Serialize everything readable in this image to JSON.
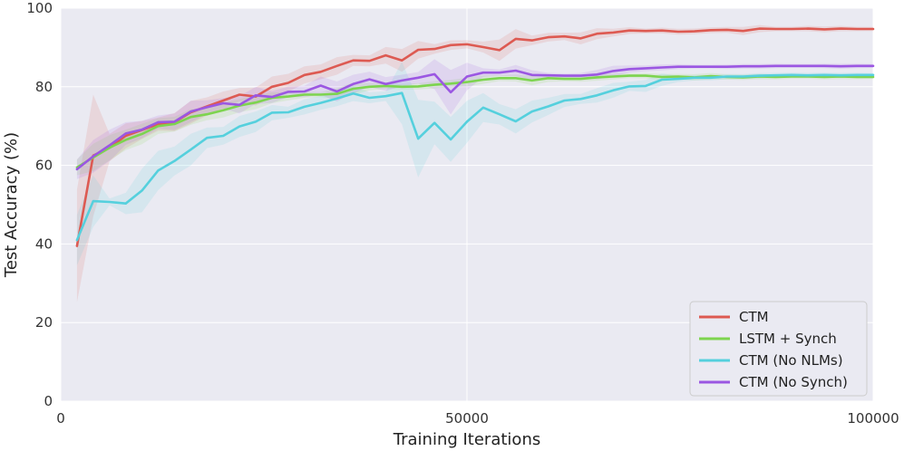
{
  "chart_data": {
    "type": "line",
    "title": "",
    "xlabel": "Training Iterations",
    "ylabel": "Test Accuracy (%)",
    "xlim": [
      0,
      100000
    ],
    "ylim": [
      0,
      100
    ],
    "x_ticks": [
      0,
      50000,
      100000
    ],
    "y_ticks": [
      0,
      20,
      40,
      60,
      80,
      100
    ],
    "x_tick_labels": [
      "0",
      "50000",
      "100000"
    ],
    "y_tick_labels": [
      "0",
      "20",
      "40",
      "60",
      "80",
      "100"
    ],
    "grid": true,
    "background": "#eaeaf2",
    "legend_position": "bottom-right",
    "series": [
      {
        "name": "CTM",
        "color": "#dd5a52",
        "x": [
          2000,
          4000,
          6000,
          8000,
          10000,
          12000,
          14000,
          16000,
          18000,
          20000,
          22000,
          24000,
          26000,
          28000,
          30000,
          32000,
          34000,
          36000,
          38000,
          40000,
          42000,
          44000,
          46000,
          48000,
          50000,
          52000,
          54000,
          56000,
          58000,
          60000,
          62000,
          64000,
          66000,
          68000,
          70000,
          72000,
          74000,
          76000,
          78000,
          80000,
          82000,
          84000,
          86000,
          88000,
          90000,
          92000,
          94000,
          96000,
          98000,
          100000
        ],
        "y": [
          39.5,
          62.5,
          64.5,
          67.5,
          69,
          70.5,
          71,
          73.5,
          75,
          76.5,
          78,
          77.5,
          80,
          81,
          83,
          83.8,
          85.3,
          86.7,
          86.6,
          88,
          86.7,
          89.4,
          89.6,
          90.6,
          90.8,
          90.1,
          89.3,
          92.2,
          91.8,
          92.6,
          92.8,
          92.3,
          93.5,
          93.8,
          94.3,
          94.2,
          94.3,
          94,
          94.1,
          94.4,
          94.5,
          94.2,
          94.8,
          94.7,
          94.7,
          94.8,
          94.6,
          94.8,
          94.7,
          94.7
        ]
      },
      {
        "name": "LSTM + Synch",
        "color": "#7dd44f",
        "x": [
          2000,
          4000,
          6000,
          8000,
          10000,
          12000,
          14000,
          16000,
          18000,
          20000,
          22000,
          24000,
          26000,
          28000,
          30000,
          32000,
          34000,
          36000,
          38000,
          40000,
          42000,
          44000,
          46000,
          48000,
          50000,
          52000,
          54000,
          56000,
          58000,
          60000,
          62000,
          64000,
          66000,
          68000,
          70000,
          72000,
          74000,
          76000,
          78000,
          80000,
          82000,
          84000,
          86000,
          88000,
          90000,
          92000,
          94000,
          96000,
          98000,
          100000
        ],
        "y": [
          59.5,
          62,
          64.5,
          66.5,
          68,
          70,
          70.5,
          72.3,
          73,
          74,
          75.2,
          76,
          77.2,
          77.5,
          78,
          78,
          78.2,
          79.5,
          80,
          80.2,
          80,
          80.1,
          80.5,
          80.8,
          81.2,
          81.8,
          82.2,
          82.2,
          81.6,
          82.2,
          82,
          82,
          82.4,
          82.6,
          82.8,
          82.8,
          82.5,
          82.6,
          82.4,
          82.7,
          82.5,
          82.4,
          82.6,
          82.5,
          82.6,
          82.6,
          82.5,
          82.6,
          82.5,
          82.5
        ]
      },
      {
        "name": "CTM (No NLMs)",
        "color": "#55d0dd",
        "x": [
          2000,
          4000,
          6000,
          8000,
          10000,
          12000,
          14000,
          16000,
          18000,
          20000,
          22000,
          24000,
          26000,
          28000,
          30000,
          32000,
          34000,
          36000,
          38000,
          40000,
          42000,
          44000,
          46000,
          48000,
          50000,
          52000,
          54000,
          56000,
          58000,
          60000,
          62000,
          64000,
          66000,
          68000,
          70000,
          72000,
          74000,
          76000,
          78000,
          80000,
          82000,
          84000,
          86000,
          88000,
          90000,
          92000,
          94000,
          96000,
          98000,
          100000
        ],
        "y": [
          41,
          50.9,
          50.7,
          50.3,
          53.6,
          58.7,
          61.1,
          64,
          67,
          67.5,
          69.9,
          71.1,
          73.4,
          73.5,
          74.9,
          75.9,
          77,
          78.3,
          77.2,
          77.6,
          78.4,
          66.8,
          70.8,
          66.6,
          71.1,
          74.7,
          73,
          71.2,
          73.7,
          75,
          76.5,
          76.9,
          77.8,
          79.1,
          80.1,
          80.2,
          81.8,
          82,
          82.3,
          82.3,
          82.6,
          82.6,
          82.8,
          82.9,
          83,
          82.9,
          83,
          82.9,
          83,
          83
        ]
      },
      {
        "name": "CTM (No Synch)",
        "color": "#9b57e2",
        "x": [
          2000,
          4000,
          6000,
          8000,
          10000,
          12000,
          14000,
          16000,
          18000,
          20000,
          22000,
          24000,
          26000,
          28000,
          30000,
          32000,
          34000,
          36000,
          38000,
          40000,
          42000,
          44000,
          46000,
          48000,
          50000,
          52000,
          54000,
          56000,
          58000,
          60000,
          62000,
          64000,
          66000,
          68000,
          70000,
          72000,
          74000,
          76000,
          78000,
          80000,
          82000,
          84000,
          86000,
          88000,
          90000,
          92000,
          94000,
          96000,
          98000,
          100000
        ],
        "y": [
          59,
          62.3,
          65.1,
          68.1,
          69.1,
          71,
          71.1,
          73.7,
          74.8,
          75.8,
          75.4,
          77.8,
          77.4,
          78.7,
          78.8,
          80.3,
          78.8,
          80.7,
          81.9,
          80.7,
          81.6,
          82.3,
          83.2,
          78.6,
          82.6,
          83.6,
          83.6,
          84.1,
          83,
          82.9,
          82.8,
          82.8,
          83.1,
          84,
          84.5,
          84.7,
          84.9,
          85.1,
          85.1,
          85.1,
          85.1,
          85.2,
          85.2,
          85.3,
          85.3,
          85.3,
          85.3,
          85.2,
          85.3,
          85.3
        ]
      }
    ]
  }
}
